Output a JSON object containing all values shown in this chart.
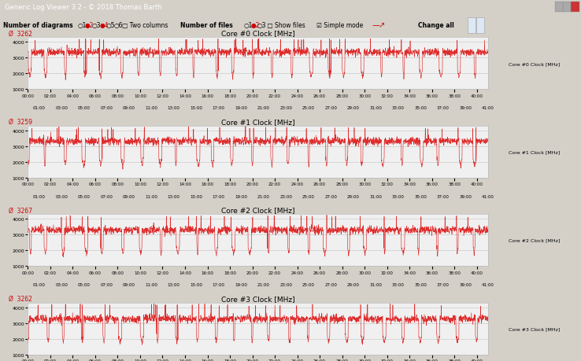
{
  "title_bar": "Generic Log Viewer 3.2 - © 2018 Thomas Barth",
  "cores": [
    {
      "title": "Core #0 Clock [MHz]",
      "avg": 3262,
      "label": "Core #0 Clock [MHz]"
    },
    {
      "title": "Core #1 Clock [MHz]",
      "avg": 3259,
      "label": "Core #1 Clock [MHz]"
    },
    {
      "title": "Core #2 Clock [MHz]",
      "avg": 3267,
      "label": "Core #2 Clock [MHz]"
    },
    {
      "title": "Core #3 Clock [MHz]",
      "avg": 3262,
      "label": "Core #3 Clock [MHz]"
    }
  ],
  "yticks": [
    1000,
    2000,
    3000,
    4000
  ],
  "ylim_low": 1000,
  "ylim_high": 4300,
  "total_seconds": 2460,
  "line_color": "#dd2222",
  "plot_bg": "#f0f0f0",
  "base_freq": 3350,
  "drop_freq": 1750,
  "noise_amp": 120,
  "spike_up": 4150,
  "window_bg": "#d4d0c8",
  "titlebar_color": "#3a6ea5",
  "toolbar_bg": "#ece9d8"
}
